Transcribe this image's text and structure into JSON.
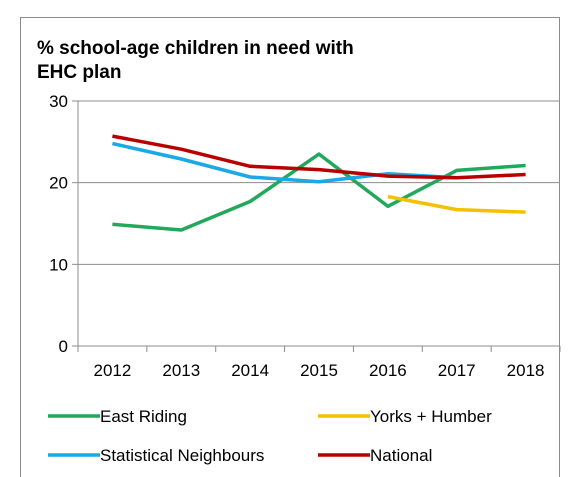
{
  "chart_data": {
    "type": "line",
    "title": "% school-age children in need with\nEHC plan",
    "xlabel": "",
    "ylabel": "",
    "categories": [
      "2012",
      "2013",
      "2014",
      "2015",
      "2016",
      "2017",
      "2018"
    ],
    "ylim": [
      0,
      30
    ],
    "yticks": [
      0,
      10,
      20,
      30
    ],
    "grid": true,
    "legend_position": "bottom",
    "series": [
      {
        "name": "East Riding",
        "color": "#22a85a",
        "values": [
          14.9,
          14.2,
          17.7,
          23.5,
          17.1,
          21.5,
          22.1
        ]
      },
      {
        "name": "Yorks + Humber",
        "color": "#f5c000",
        "values": [
          null,
          null,
          null,
          null,
          18.3,
          16.7,
          16.4
        ]
      },
      {
        "name": "Statistical Neighbours",
        "color": "#19a9e6",
        "values": [
          24.8,
          22.9,
          20.7,
          20.1,
          21.1,
          20.6,
          null
        ]
      },
      {
        "name": "National",
        "color": "#b80000",
        "values": [
          25.7,
          24.1,
          22.0,
          21.6,
          20.8,
          20.6,
          21.0
        ]
      }
    ]
  }
}
